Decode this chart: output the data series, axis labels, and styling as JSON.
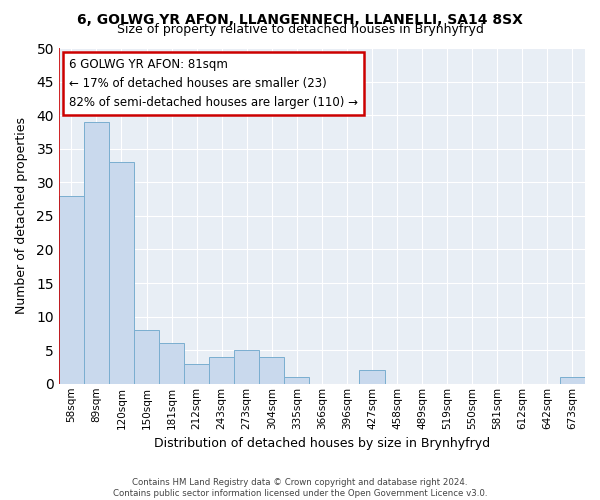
{
  "title": "6, GOLWG YR AFON, LLANGENNECH, LLANELLI, SA14 8SX",
  "subtitle": "Size of property relative to detached houses in Brynhyfryd",
  "xlabel": "Distribution of detached houses by size in Brynhyfryd",
  "ylabel": "Number of detached properties",
  "categories": [
    "58sqm",
    "89sqm",
    "120sqm",
    "150sqm",
    "181sqm",
    "212sqm",
    "243sqm",
    "273sqm",
    "304sqm",
    "335sqm",
    "366sqm",
    "396sqm",
    "427sqm",
    "458sqm",
    "489sqm",
    "519sqm",
    "550sqm",
    "581sqm",
    "612sqm",
    "642sqm",
    "673sqm"
  ],
  "values": [
    28,
    39,
    33,
    8,
    6,
    3,
    4,
    5,
    4,
    1,
    0,
    0,
    2,
    0,
    0,
    0,
    0,
    0,
    0,
    0,
    1
  ],
  "bar_color": "#c9d9ed",
  "bar_edge_color": "#7aaed0",
  "background_color": "#e8eef5",
  "grid_color": "#ffffff",
  "ylim": [
    0,
    50
  ],
  "yticks": [
    0,
    5,
    10,
    15,
    20,
    25,
    30,
    35,
    40,
    45,
    50
  ],
  "vline_color": "#cc0000",
  "annotation_title": "6 GOLWG YR AFON: 81sqm",
  "annotation_line1": "← 17% of detached houses are smaller (23)",
  "annotation_line2": "82% of semi-detached houses are larger (110) →",
  "annotation_box_edgecolor": "#cc0000",
  "footer_line1": "Contains HM Land Registry data © Crown copyright and database right 2024.",
  "footer_line2": "Contains public sector information licensed under the Open Government Licence v3.0."
}
